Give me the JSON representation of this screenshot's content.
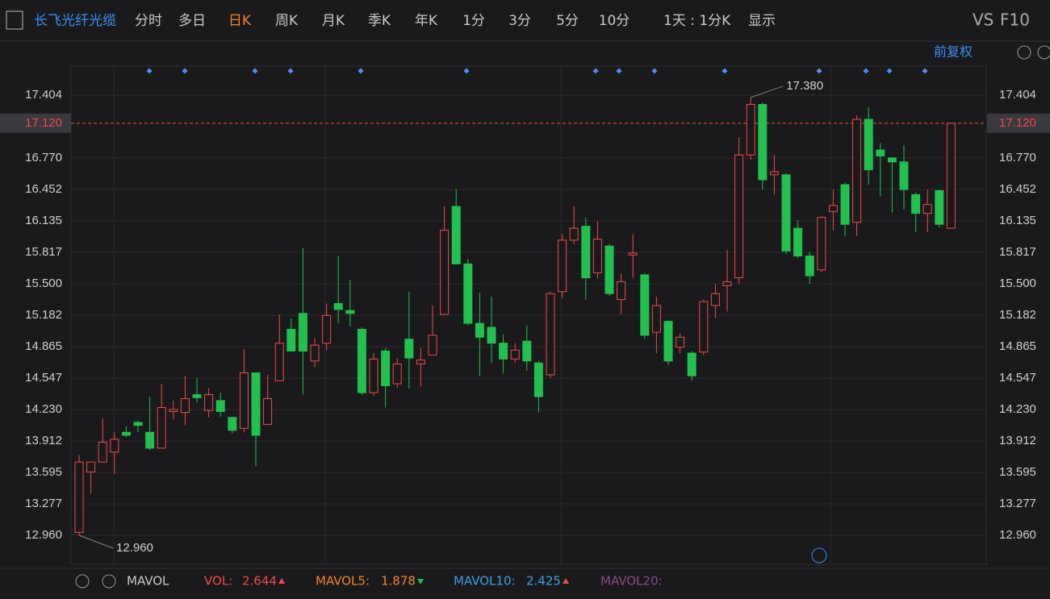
{
  "toolbar": {
    "stock": "长飞光纤光缆",
    "periods": [
      "分时",
      "多日",
      "日K",
      "周K",
      "月K",
      "季K",
      "年K",
      "1分",
      "3分",
      "5分",
      "10分"
    ],
    "interval": "1天 : 1分K",
    "display": "显示",
    "vs": "VS",
    "f10": "F10"
  },
  "adjust": "前复权",
  "chart_data": {
    "type": "candlestick",
    "open": [
      12.99,
      13.6,
      13.7,
      13.8,
      14.0,
      14.1,
      14.0,
      13.84,
      14.21,
      14.2,
      14.38,
      14.22,
      14.32,
      14.15,
      14.04,
      14.6,
      14.08,
      14.52,
      15.04,
      15.2,
      14.72,
      14.9,
      15.3,
      15.23,
      15.04,
      14.4,
      14.82,
      14.49,
      14.94,
      14.69,
      14.78,
      15.19,
      16.28,
      15.7,
      15.1,
      15.06,
      14.9,
      14.74,
      14.92,
      14.7,
      14.58,
      15.42,
      15.94,
      16.08,
      15.61,
      15.88,
      15.34,
      15.79,
      15.59,
      15.01,
      15.12,
      14.86,
      14.8,
      14.81,
      15.28,
      15.48,
      15.56,
      16.8,
      17.31,
      16.6,
      16.6,
      16.06,
      15.78,
      15.64,
      16.23,
      16.5,
      16.12,
      17.16,
      16.85,
      16.77,
      16.73,
      16.4,
      16.21,
      16.44,
      16.06
    ],
    "high": [
      13.77,
      13.7,
      14.14,
      14.0,
      14.06,
      14.12,
      14.36,
      14.49,
      14.32,
      14.57,
      14.55,
      14.45,
      14.4,
      14.15,
      14.84,
      14.6,
      14.58,
      15.19,
      15.15,
      15.86,
      14.95,
      15.3,
      15.78,
      15.54,
      15.06,
      14.8,
      14.85,
      14.75,
      15.42,
      14.85,
      15.28,
      16.28,
      16.46,
      15.75,
      15.41,
      15.37,
      14.99,
      14.9,
      15.08,
      14.72,
      15.42,
      16.0,
      16.28,
      16.17,
      16.13,
      15.9,
      15.6,
      16.0,
      15.61,
      15.37,
      15.13,
      15.0,
      14.82,
      15.34,
      15.5,
      15.84,
      16.98,
      17.38,
      17.33,
      16.8,
      16.62,
      16.14,
      15.82,
      16.18,
      16.45,
      16.52,
      17.2,
      17.28,
      16.92,
      16.78,
      16.9,
      16.42,
      16.45,
      16.45,
      17.12
    ],
    "low": [
      12.96,
      13.38,
      13.7,
      13.58,
      13.95,
      14.0,
      13.82,
      13.84,
      14.13,
      14.07,
      14.3,
      14.15,
      14.16,
      13.99,
      14.0,
      13.66,
      14.08,
      14.52,
      14.82,
      14.38,
      14.66,
      14.83,
      15.1,
      15.07,
      14.38,
      14.37,
      14.25,
      14.45,
      14.44,
      14.46,
      14.78,
      15.19,
      15.7,
      15.08,
      14.57,
      14.7,
      14.6,
      14.7,
      14.62,
      14.2,
      14.55,
      15.35,
      15.9,
      15.34,
      15.55,
      15.38,
      15.19,
      15.56,
      14.94,
      14.8,
      14.68,
      14.8,
      14.52,
      14.78,
      15.15,
      15.22,
      15.5,
      16.75,
      16.45,
      16.4,
      15.8,
      15.76,
      15.5,
      15.62,
      16.04,
      15.98,
      15.98,
      16.5,
      16.38,
      16.22,
      16.25,
      16.02,
      16.02,
      16.07,
      16.06
    ],
    "close": [
      13.7,
      13.7,
      13.9,
      13.93,
      13.97,
      14.07,
      13.84,
      14.25,
      14.23,
      14.34,
      14.35,
      14.38,
      14.21,
      14.02,
      14.6,
      13.97,
      14.34,
      14.9,
      14.82,
      14.82,
      14.88,
      15.18,
      15.24,
      15.2,
      14.4,
      14.74,
      14.47,
      14.69,
      14.75,
      14.73,
      14.98,
      16.04,
      15.7,
      15.1,
      14.96,
      14.9,
      14.74,
      14.83,
      14.72,
      14.36,
      15.4,
      15.94,
      16.06,
      15.56,
      15.95,
      15.4,
      15.52,
      15.81,
      14.98,
      15.28,
      14.72,
      14.96,
      14.57,
      15.32,
      15.4,
      15.52,
      16.8,
      17.31,
      16.55,
      16.63,
      15.83,
      15.78,
      15.58,
      16.17,
      16.29,
      16.1,
      17.16,
      16.65,
      16.79,
      16.73,
      16.45,
      16.21,
      16.3,
      16.1,
      17.12
    ],
    "up_color": "#f24a4a",
    "down_color": "#22c04f",
    "ylim": [
      12.667,
      17.697
    ],
    "yticks": [
      {
        "value": 12.96,
        "label": "12.960"
      },
      13.277,
      13.595,
      13.912,
      {
        "value": 14.23,
        "label": "14.230"
      },
      14.547,
      14.865,
      15.182,
      {
        "value": 15.5,
        "label": "15.500"
      },
      15.817,
      16.135,
      16.452,
      {
        "value": 16.77,
        "label": "16.770"
      },
      17.404
    ],
    "current_price": {
      "value": 17.12,
      "label": "17.120"
    },
    "max_annotation": {
      "value": 17.38,
      "label": "17.380"
    },
    "min_annotation": {
      "value": 12.96,
      "label": "12.960"
    },
    "grid": true
  },
  "indicator_bar": {
    "name": "MAVOL",
    "items": [
      {
        "label": "VOL:",
        "value": "2.644"
      },
      {
        "label": "MAVOL5:",
        "value": "1.878"
      },
      {
        "label": "MAVOL10:",
        "value": "2.425"
      },
      {
        "label": "MAVOL20:"
      }
    ]
  }
}
